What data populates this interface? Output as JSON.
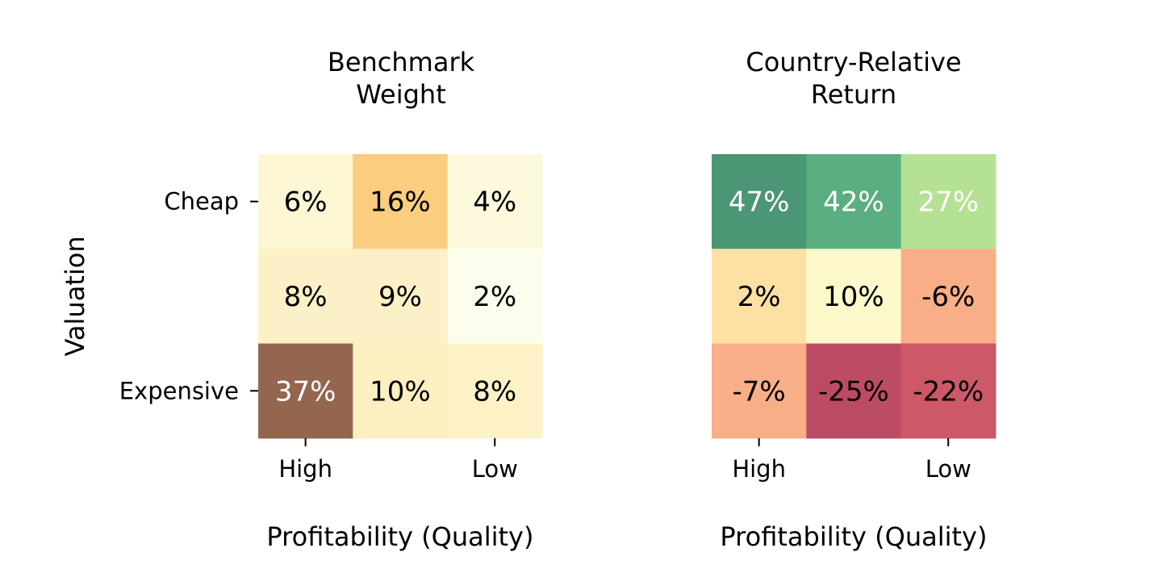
{
  "chart_data": [
    {
      "type": "heatmap",
      "title": "Benchmark\nWeight",
      "xlabel": "Profitability (Quality)",
      "ylabel": "Valuation",
      "x_categories": [
        "High",
        "",
        "Low"
      ],
      "y_categories": [
        "Cheap",
        "",
        "Expensive"
      ],
      "values": [
        [
          6,
          16,
          4
        ],
        [
          8,
          9,
          2
        ],
        [
          37,
          10,
          8
        ]
      ],
      "labels": [
        [
          "6%",
          "16%",
          "4%"
        ],
        [
          "8%",
          "9%",
          "2%"
        ],
        [
          "37%",
          "10%",
          "8%"
        ]
      ],
      "colors": [
        [
          "#fcf6d4",
          "#fbcd7e",
          "#fdf9dd"
        ],
        [
          "#fcf0c7",
          "#fcf0c7",
          "#fdfdee"
        ],
        [
          "#946650",
          "#fcefc1",
          "#fcf2c5"
        ]
      ],
      "label_colors": [
        [
          "#000000",
          "#000000",
          "#000000"
        ],
        [
          "#000000",
          "#000000",
          "#000000"
        ],
        [
          "#ffffff",
          "#000000",
          "#000000"
        ]
      ],
      "colorscale": "yellow-orange-brown",
      "unit": "%"
    },
    {
      "type": "heatmap",
      "title": "Country-Relative\nReturn",
      "xlabel": "Profitability (Quality)",
      "ylabel": "",
      "x_categories": [
        "High",
        "",
        "Low"
      ],
      "y_categories": [
        "Cheap",
        "",
        "Expensive"
      ],
      "values": [
        [
          47,
          42,
          27
        ],
        [
          2,
          10,
          -6
        ],
        [
          -7,
          -25,
          -22
        ]
      ],
      "labels": [
        [
          "47%",
          "42%",
          "27%"
        ],
        [
          "2%",
          "10%",
          "-6%"
        ],
        [
          "-7%",
          "-25%",
          "-22%"
        ]
      ],
      "colors": [
        [
          "#4b9674",
          "#5aae7f",
          "#b5e194"
        ],
        [
          "#fde0a4",
          "#fdf9cb",
          "#f8ae86"
        ],
        [
          "#f8af87",
          "#bc4c64",
          "#cc5868"
        ]
      ],
      "label_colors": [
        [
          "#ffffff",
          "#ffffff",
          "#ffffff"
        ],
        [
          "#000000",
          "#000000",
          "#000000"
        ],
        [
          "#000000",
          "#000000",
          "#000000"
        ]
      ],
      "colorscale": "red-yellow-green",
      "unit": "%"
    }
  ]
}
